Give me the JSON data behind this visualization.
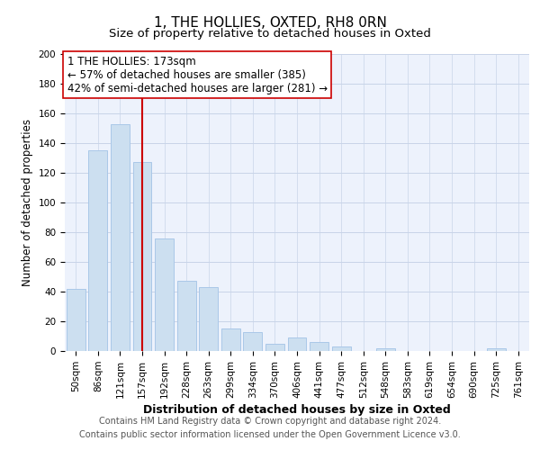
{
  "title": "1, THE HOLLIES, OXTED, RH8 0RN",
  "subtitle": "Size of property relative to detached houses in Oxted",
  "xlabel": "Distribution of detached houses by size in Oxted",
  "ylabel": "Number of detached properties",
  "bar_labels": [
    "50sqm",
    "86sqm",
    "121sqm",
    "157sqm",
    "192sqm",
    "228sqm",
    "263sqm",
    "299sqm",
    "334sqm",
    "370sqm",
    "406sqm",
    "441sqm",
    "477sqm",
    "512sqm",
    "548sqm",
    "583sqm",
    "619sqm",
    "654sqm",
    "690sqm",
    "725sqm",
    "761sqm"
  ],
  "bar_values": [
    42,
    135,
    153,
    127,
    76,
    47,
    43,
    15,
    13,
    5,
    9,
    6,
    3,
    0,
    2,
    0,
    0,
    0,
    0,
    2,
    0
  ],
  "bar_color": "#ccdff0",
  "bar_edge_color": "#aac8e8",
  "vline_x_index": 3,
  "vline_color": "#cc0000",
  "annotation_line1": "1 THE HOLLIES: 173sqm",
  "annotation_line2": "← 57% of detached houses are smaller (385)",
  "annotation_line3": "42% of semi-detached houses are larger (281) →",
  "ylim": [
    0,
    200
  ],
  "yticks": [
    0,
    20,
    40,
    60,
    80,
    100,
    120,
    140,
    160,
    180,
    200
  ],
  "grid_color": "#c8d4e8",
  "background_color": "#edf2fc",
  "footer_text": "Contains HM Land Registry data © Crown copyright and database right 2024.\nContains public sector information licensed under the Open Government Licence v3.0.",
  "title_fontsize": 11,
  "subtitle_fontsize": 9.5,
  "xlabel_fontsize": 9,
  "ylabel_fontsize": 8.5,
  "tick_fontsize": 7.5,
  "annotation_fontsize": 8.5,
  "footer_fontsize": 7
}
